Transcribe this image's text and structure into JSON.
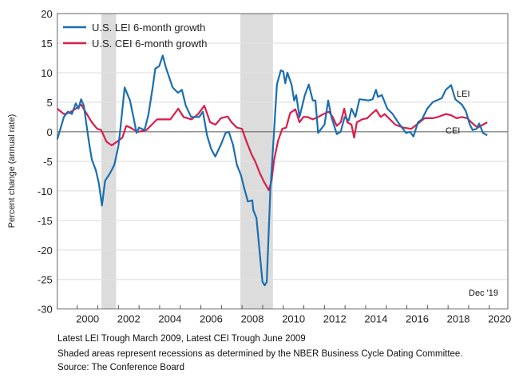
{
  "chart_data": {
    "type": "line",
    "ylabel": "Percent change (annual rate)",
    "ylim": [
      -30,
      20
    ],
    "yticks": [
      20,
      15,
      10,
      5,
      0,
      -5,
      -10,
      -15,
      -20,
      -25,
      -30
    ],
    "xlim": [
      1999.03,
      2020.9
    ],
    "xtick_labels": [
      "2000",
      "2002",
      "2004",
      "2006",
      "2008",
      "2010",
      "2012",
      "2014",
      "2016",
      "2018",
      "2020"
    ],
    "grid": "horizontal",
    "legend_position": "top-left",
    "recessions": [
      [
        2001.17,
        2001.89
      ],
      [
        2007.92,
        2009.5
      ]
    ],
    "annotations": {
      "lei_label": "LEI",
      "cei_label": "CEI",
      "date_label": "Dec '19"
    },
    "series": [
      {
        "name": "U.S. LEI 6-month growth",
        "color": "#1a6faf",
        "points": [
          [
            1999.03,
            -1.3
          ],
          [
            1999.35,
            2.5
          ],
          [
            1999.55,
            3.4
          ],
          [
            1999.74,
            3.0
          ],
          [
            1999.93,
            4.8
          ],
          [
            2000.06,
            3.9
          ],
          [
            2000.19,
            5.5
          ],
          [
            2000.32,
            4.4
          ],
          [
            2000.45,
            1.2
          ],
          [
            2000.58,
            -2.0
          ],
          [
            2000.71,
            -4.7
          ],
          [
            2000.9,
            -6.5
          ],
          [
            2001.05,
            -8.7
          ],
          [
            2001.2,
            -12.5
          ],
          [
            2001.35,
            -8.3
          ],
          [
            2001.61,
            -6.9
          ],
          [
            2001.8,
            -5.6
          ],
          [
            2002.0,
            -2.4
          ],
          [
            2002.1,
            0.7
          ],
          [
            2002.3,
            7.5
          ],
          [
            2002.56,
            5.3
          ],
          [
            2002.75,
            2.1
          ],
          [
            2002.88,
            -0.2
          ],
          [
            2003.0,
            0.7
          ],
          [
            2003.27,
            0.3
          ],
          [
            2003.46,
            3.0
          ],
          [
            2003.66,
            7.5
          ],
          [
            2003.79,
            10.7
          ],
          [
            2003.98,
            11.1
          ],
          [
            2004.15,
            12.9
          ],
          [
            2004.3,
            10.9
          ],
          [
            2004.63,
            7.5
          ],
          [
            2004.89,
            6.6
          ],
          [
            2005.08,
            7.1
          ],
          [
            2005.27,
            4.4
          ],
          [
            2005.53,
            2.5
          ],
          [
            2005.92,
            2.5
          ],
          [
            2006.1,
            3.4
          ],
          [
            2006.3,
            -0.6
          ],
          [
            2006.5,
            -2.9
          ],
          [
            2006.7,
            -4.2
          ],
          [
            2006.97,
            -2.2
          ],
          [
            2007.2,
            -0.2
          ],
          [
            2007.36,
            0.0
          ],
          [
            2007.56,
            -2.2
          ],
          [
            2007.75,
            -5.6
          ],
          [
            2007.95,
            -7.4
          ],
          [
            2008.08,
            -9.2
          ],
          [
            2008.28,
            -11.8
          ],
          [
            2008.5,
            -11.6
          ],
          [
            2008.55,
            -13.3
          ],
          [
            2008.7,
            -14.6
          ],
          [
            2008.99,
            -25.4
          ],
          [
            2009.1,
            -26.0
          ],
          [
            2009.2,
            -25.4
          ],
          [
            2009.37,
            -10.1
          ],
          [
            2009.5,
            -2.9
          ],
          [
            2009.69,
            8.0
          ],
          [
            2009.88,
            10.4
          ],
          [
            2010.0,
            10.2
          ],
          [
            2010.1,
            8.2
          ],
          [
            2010.2,
            10.0
          ],
          [
            2010.4,
            8.0
          ],
          [
            2010.53,
            5.3
          ],
          [
            2010.63,
            6.2
          ],
          [
            2010.79,
            2.5
          ],
          [
            2011.05,
            6.2
          ],
          [
            2011.24,
            8.0
          ],
          [
            2011.43,
            5.3
          ],
          [
            2011.56,
            5.3
          ],
          [
            2011.69,
            -0.2
          ],
          [
            2011.89,
            0.7
          ],
          [
            2012.0,
            1.2
          ],
          [
            2012.18,
            5.3
          ],
          [
            2012.34,
            2.5
          ],
          [
            2012.6,
            -0.4
          ],
          [
            2012.79,
            0.0
          ],
          [
            2012.98,
            2.5
          ],
          [
            2013.18,
            1.9
          ],
          [
            2013.31,
            3.9
          ],
          [
            2013.5,
            2.5
          ],
          [
            2013.7,
            5.5
          ],
          [
            2014.15,
            5.3
          ],
          [
            2014.34,
            5.5
          ],
          [
            2014.5,
            7.1
          ],
          [
            2014.6,
            5.9
          ],
          [
            2014.79,
            6.2
          ],
          [
            2015.05,
            3.9
          ],
          [
            2015.31,
            3.0
          ],
          [
            2015.57,
            1.6
          ],
          [
            2015.96,
            -0.2
          ],
          [
            2016.15,
            0.0
          ],
          [
            2016.32,
            -0.8
          ],
          [
            2016.54,
            1.6
          ],
          [
            2016.73,
            2.1
          ],
          [
            2016.99,
            3.9
          ],
          [
            2017.25,
            5.0
          ],
          [
            2017.44,
            5.3
          ],
          [
            2017.7,
            5.7
          ],
          [
            2017.89,
            7.1
          ],
          [
            2018.15,
            7.9
          ],
          [
            2018.35,
            5.5
          ],
          [
            2018.67,
            4.6
          ],
          [
            2018.86,
            3.5
          ],
          [
            2019.06,
            1.2
          ],
          [
            2019.19,
            0.3
          ],
          [
            2019.38,
            0.5
          ],
          [
            2019.51,
            1.4
          ],
          [
            2019.7,
            -0.2
          ],
          [
            2019.9,
            -0.6
          ]
        ]
      },
      {
        "name": "U.S. CEI 6-month growth",
        "color": "#d81e4b",
        "points": [
          [
            1999.03,
            3.9
          ],
          [
            1999.35,
            3.0
          ],
          [
            1999.61,
            3.2
          ],
          [
            1999.93,
            3.9
          ],
          [
            2000.19,
            4.6
          ],
          [
            2000.38,
            3.5
          ],
          [
            2000.71,
            1.6
          ],
          [
            2000.97,
            0.5
          ],
          [
            2001.16,
            0.3
          ],
          [
            2001.42,
            -1.7
          ],
          [
            2001.67,
            -2.3
          ],
          [
            2001.93,
            -1.7
          ],
          [
            2002.19,
            -1.0
          ],
          [
            2002.38,
            1.0
          ],
          [
            2002.58,
            0.7
          ],
          [
            2002.77,
            0.3
          ],
          [
            2002.97,
            0.0
          ],
          [
            2003.36,
            0.3
          ],
          [
            2003.62,
            1.2
          ],
          [
            2003.87,
            2.1
          ],
          [
            2004.13,
            2.1
          ],
          [
            2004.52,
            2.1
          ],
          [
            2004.9,
            3.9
          ],
          [
            2005.16,
            2.5
          ],
          [
            2005.55,
            2.1
          ],
          [
            2005.87,
            3.0
          ],
          [
            2006.17,
            4.4
          ],
          [
            2006.45,
            1.6
          ],
          [
            2006.71,
            1.2
          ],
          [
            2006.97,
            2.3
          ],
          [
            2007.3,
            2.6
          ],
          [
            2007.49,
            1.6
          ],
          [
            2007.75,
            0.7
          ],
          [
            2008.0,
            0.5
          ],
          [
            2008.2,
            -1.5
          ],
          [
            2008.46,
            -3.8
          ],
          [
            2008.65,
            -5.1
          ],
          [
            2008.85,
            -6.9
          ],
          [
            2009.04,
            -8.3
          ],
          [
            2009.3,
            -9.9
          ],
          [
            2009.43,
            -8.3
          ],
          [
            2009.56,
            -4.7
          ],
          [
            2009.75,
            -1.5
          ],
          [
            2009.95,
            0.5
          ],
          [
            2010.14,
            0.7
          ],
          [
            2010.34,
            3.2
          ],
          [
            2010.59,
            3.8
          ],
          [
            2010.79,
            1.6
          ],
          [
            2010.98,
            2.5
          ],
          [
            2011.18,
            2.5
          ],
          [
            2011.43,
            2.1
          ],
          [
            2011.69,
            2.5
          ],
          [
            2011.95,
            3.0
          ],
          [
            2012.21,
            3.4
          ],
          [
            2012.4,
            2.5
          ],
          [
            2012.6,
            1.0
          ],
          [
            2012.79,
            1.6
          ],
          [
            2012.96,
            3.9
          ],
          [
            2013.11,
            1.6
          ],
          [
            2013.31,
            1.2
          ],
          [
            2013.44,
            -1.0
          ],
          [
            2013.57,
            1.6
          ],
          [
            2013.82,
            2.1
          ],
          [
            2014.08,
            2.3
          ],
          [
            2014.28,
            3.0
          ],
          [
            2014.51,
            3.7
          ],
          [
            2014.73,
            2.5
          ],
          [
            2014.92,
            3.0
          ],
          [
            2015.18,
            2.1
          ],
          [
            2015.44,
            1.2
          ],
          [
            2015.83,
            0.7
          ],
          [
            2016.21,
            0.5
          ],
          [
            2016.47,
            1.2
          ],
          [
            2016.86,
            2.3
          ],
          [
            2017.25,
            2.3
          ],
          [
            2017.51,
            2.5
          ],
          [
            2017.89,
            3.0
          ],
          [
            2018.15,
            2.8
          ],
          [
            2018.41,
            2.3
          ],
          [
            2018.67,
            2.5
          ],
          [
            2018.93,
            2.3
          ],
          [
            2019.19,
            1.4
          ],
          [
            2019.44,
            0.7
          ],
          [
            2019.7,
            1.2
          ],
          [
            2019.9,
            1.6
          ]
        ]
      }
    ]
  },
  "footer": {
    "line1": "Latest LEI Trough March 2009, Latest CEI Trough June 2009",
    "line2": "Shaded areas represent recessions as determined by the NBER Business Cycle Dating Committee.",
    "line3": "Source: The Conference Board"
  }
}
